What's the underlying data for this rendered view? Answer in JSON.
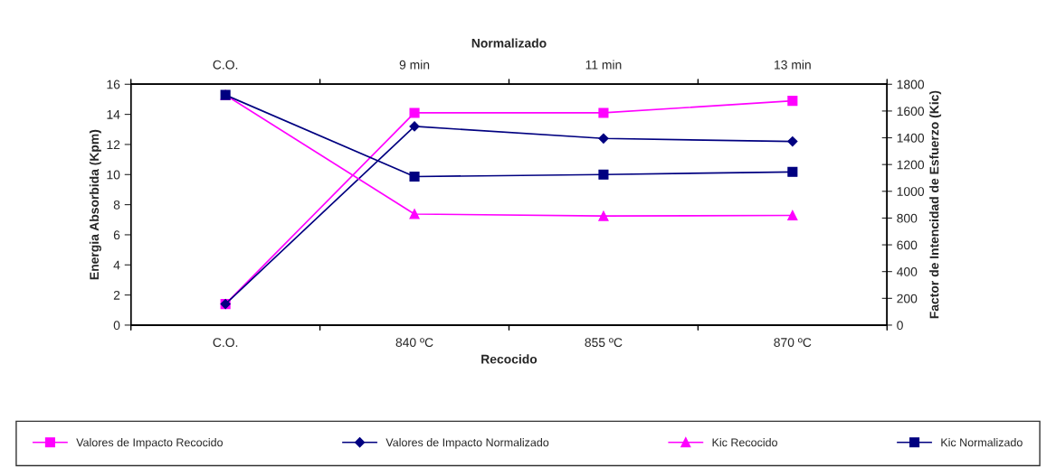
{
  "chart_data": {
    "type": "line",
    "x2label": "Normalizado",
    "xlabel": "Recocido",
    "ylabel": "Energia Absorbida (Kpm)",
    "y2label": "Factor de Intencidad de Esfuerzo (Kic)",
    "categories": [
      "C.O.",
      "840 ºC",
      "855 ºC",
      "870 ºC"
    ],
    "annotations": [
      "C.O.",
      "9 min",
      "11 min",
      "13 min"
    ],
    "ylim": [
      0,
      16
    ],
    "yticks": [
      0,
      2,
      4,
      6,
      8,
      10,
      12,
      14,
      16
    ],
    "y2lim": [
      0,
      1800
    ],
    "y2ticks": [
      0,
      200,
      400,
      600,
      800,
      1000,
      1200,
      1400,
      1600,
      1800
    ],
    "series": [
      {
        "name": "Valores de Impacto Recocido",
        "color": "#ff00ff",
        "marker": "square",
        "values": [
          1.4,
          14.1,
          14.1,
          14.9
        ]
      },
      {
        "name": "Valores de Impacto Normalizado",
        "color": "#000080",
        "marker": "diamond",
        "values": [
          1.4,
          13.2,
          12.4,
          12.2
        ]
      },
      {
        "name": "Kic Recocido",
        "color": "#ff00ff",
        "marker": "triangle",
        "axis": "y2",
        "values": [
          1720,
          830,
          815,
          820
        ]
      },
      {
        "name": "Kic Normalizado",
        "color": "#000080",
        "marker": "square",
        "axis": "y2",
        "values": [
          1720,
          1110,
          1125,
          1145
        ]
      }
    ],
    "grid": false,
    "legend": "bottom",
    "line_style": "solid"
  }
}
